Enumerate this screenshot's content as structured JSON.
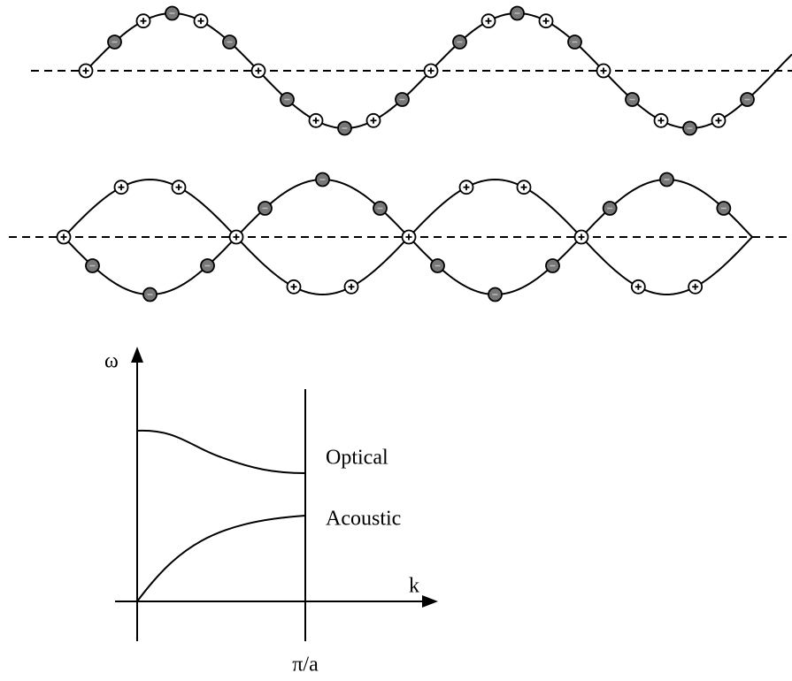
{
  "labels": {
    "omega": "ω",
    "k": "k",
    "zone_edge": "π/a",
    "optical": "Optical",
    "acoustic": "Acoustic"
  }
}
